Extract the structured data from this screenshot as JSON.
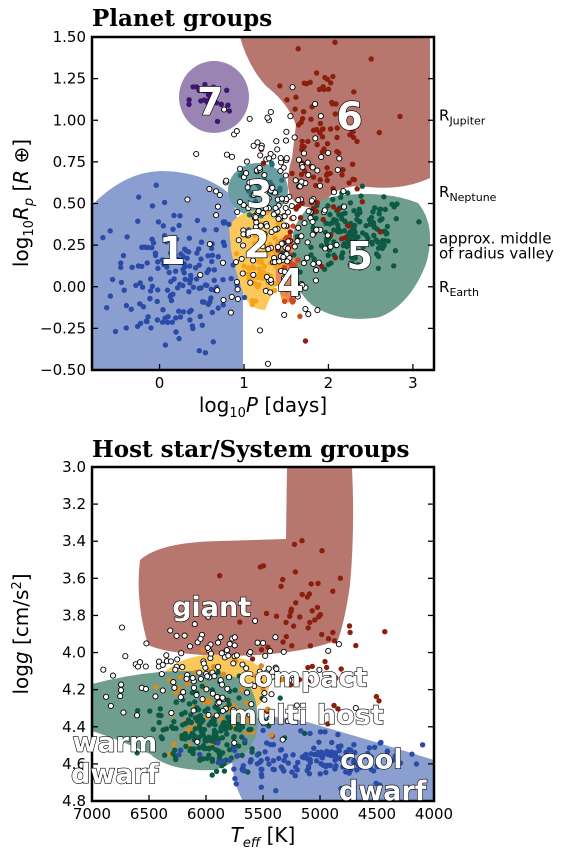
{
  "chart_data": [
    {
      "type": "scatter",
      "title": "Planet groups",
      "xlabel": "log10P [days]",
      "ylabel": "log10Rp [R⊕]",
      "xlim": [
        -0.8,
        3.25
      ],
      "ylim": [
        -0.5,
        1.5
      ],
      "x_ticks": [
        "0",
        "1",
        "2",
        "3"
      ],
      "y_ticks": [
        "−0.50",
        "−0.25",
        "0.00",
        "0.25",
        "0.50",
        "0.75",
        "1.00",
        "1.25",
        "1.50"
      ],
      "grid": false,
      "reference_labels": [
        {
          "text": "R",
          "sub": "Jupiter",
          "y": 1.03
        },
        {
          "text": "R",
          "sub": "Neptune",
          "y": 0.57
        },
        {
          "text": "approx. middle",
          "y": 0.29
        },
        {
          "text": "of radius valley",
          "y": 0.2
        },
        {
          "text": "R",
          "sub": "Earth",
          "y": 0.0
        }
      ],
      "groups": [
        {
          "label": "1",
          "color": "#2b4ba8",
          "region_color": "#8a9fd0",
          "label_pos": [
            0.15,
            0.22
          ]
        },
        {
          "label": "2",
          "color": "#f2a51c",
          "region_color": "#fbc85c",
          "label_pos": [
            1.15,
            0.26
          ]
        },
        {
          "label": "3",
          "color": "#2a6e73",
          "region_color": "#6a9fa2",
          "label_pos": [
            1.18,
            0.56
          ]
        },
        {
          "label": "4",
          "color": "#d3451a",
          "region_color": "#e6875d",
          "label_pos": [
            1.55,
            0.03
          ]
        },
        {
          "label": "5",
          "color": "#0c5a44",
          "region_color": "#6f9e8e",
          "label_pos": [
            2.37,
            0.19
          ]
        },
        {
          "label": "6",
          "color": "#8b1e0c",
          "region_color": "#b7776f",
          "label_pos": [
            2.25,
            1.03
          ]
        },
        {
          "label": "7",
          "color": "#3b1870",
          "region_color": "#9a84b4",
          "label_pos": [
            0.6,
            1.12
          ]
        }
      ],
      "unclassified_marker": "open circle (black edge, white fill)"
    },
    {
      "type": "scatter",
      "title": "Host star/System groups",
      "xlabel": "Teff [K]",
      "ylabel": "logg [cm/s²]",
      "xlim": [
        7000,
        4000
      ],
      "ylim": [
        4.8,
        3.0
      ],
      "x_ticks": [
        "7000",
        "6500",
        "6000",
        "5500",
        "5000",
        "4500",
        "4000"
      ],
      "y_ticks": [
        "3.0",
        "3.2",
        "3.4",
        "3.6",
        "3.8",
        "4.0",
        "4.2",
        "4.4",
        "4.6",
        "4.8"
      ],
      "grid": false,
      "groups": [
        {
          "label": "giant",
          "color": "#8b1e0c",
          "region_color": "#b7776f"
        },
        {
          "label": "compact multi host",
          "color": "#d98a20",
          "region_color": "#fbc85c"
        },
        {
          "label": "warm dwarf",
          "color": "#0c5a44",
          "region_color": "#6f9e8e"
        },
        {
          "label": "cool dwarf",
          "color": "#2b4ba8",
          "region_color": "#8a9fd0"
        }
      ],
      "text_labels": [
        {
          "text": "giant",
          "at": [
            5950,
            3.75
          ]
        },
        {
          "text": "compact",
          "at": [
            5150,
            4.13
          ]
        },
        {
          "text": "multi host",
          "at": [
            5120,
            4.33
          ]
        },
        {
          "text": "warm",
          "at": [
            6800,
            4.48
          ]
        },
        {
          "text": "dwarf",
          "at": [
            6800,
            4.65
          ]
        },
        {
          "text": "cool",
          "at": [
            4550,
            4.57
          ]
        },
        {
          "text": "dwarf",
          "at": [
            4450,
            4.74
          ]
        }
      ],
      "unclassified_marker": "open circle (black edge, white fill)"
    }
  ]
}
